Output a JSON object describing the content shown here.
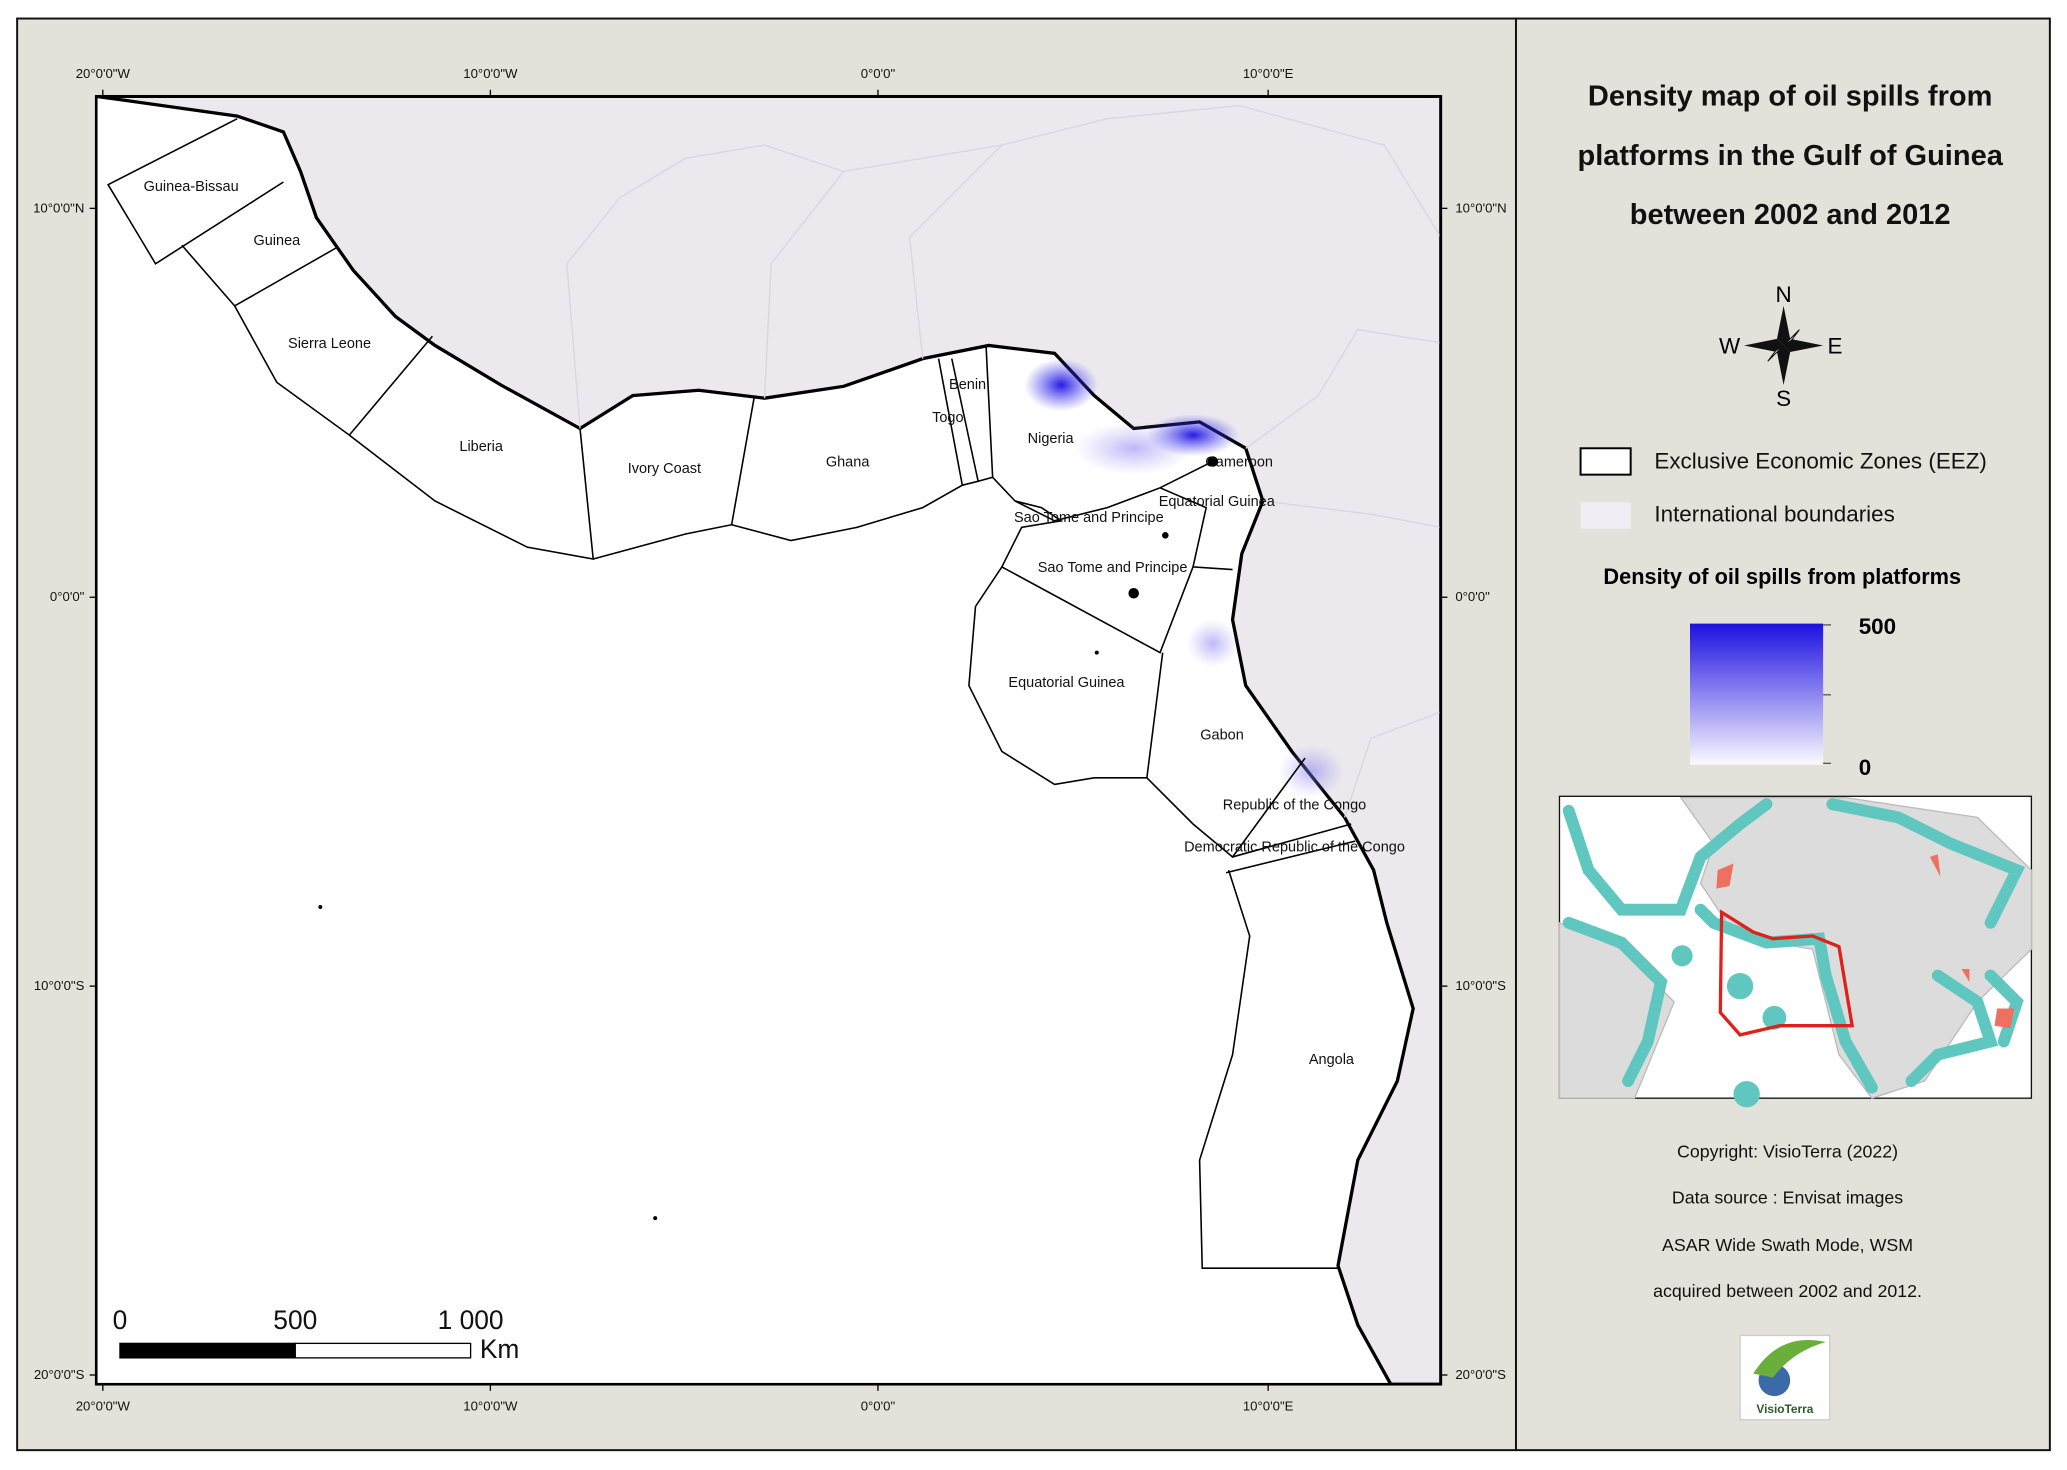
{
  "map": {
    "x_ticks": [
      "20°0'0\"W",
      "10°0'0\"W",
      "0°0'0\"",
      "10°0'0\"E"
    ],
    "y_ticks": [
      "10°0'0\"N",
      "0°0'0\"",
      "10°0'0\"S",
      "20°0'0\"S"
    ],
    "eez_labels": [
      "Guinea-Bissau",
      "Guinea",
      "Sierra Leone",
      "Liberia",
      "Ivory Coast",
      "Ghana",
      "Togo",
      "Benin",
      "Nigeria",
      "Cameroon",
      "Equatorial Guinea",
      "Sao Tome and Principe",
      "Sao Tome and Principe",
      "Equatorial Guinea",
      "Gabon",
      "Republic of the Congo",
      "Democratic Republic of the Congo",
      "Angola"
    ],
    "scale_bar": {
      "labels": [
        "0",
        "500",
        "1 000"
      ],
      "unit": "Km"
    }
  },
  "panel": {
    "title": [
      "Density map of oil spills from",
      "platforms in the Gulf of Guinea",
      "between 2002 and 2012"
    ],
    "compass": {
      "n": "N",
      "s": "S",
      "e": "E",
      "w": "W"
    },
    "legend": [
      "Exclusive Economic Zones (EEZ)",
      "International boundaries"
    ],
    "density_title": "Density of oil spills from platforms",
    "density_max": "500",
    "density_min": "0",
    "credits": [
      "Copyright: VisioTerra (2022)",
      "Data source : Envisat images",
      "ASAR Wide Swath Mode, WSM",
      "acquired between 2002 and 2012."
    ],
    "logo": "VisioTerra"
  }
}
